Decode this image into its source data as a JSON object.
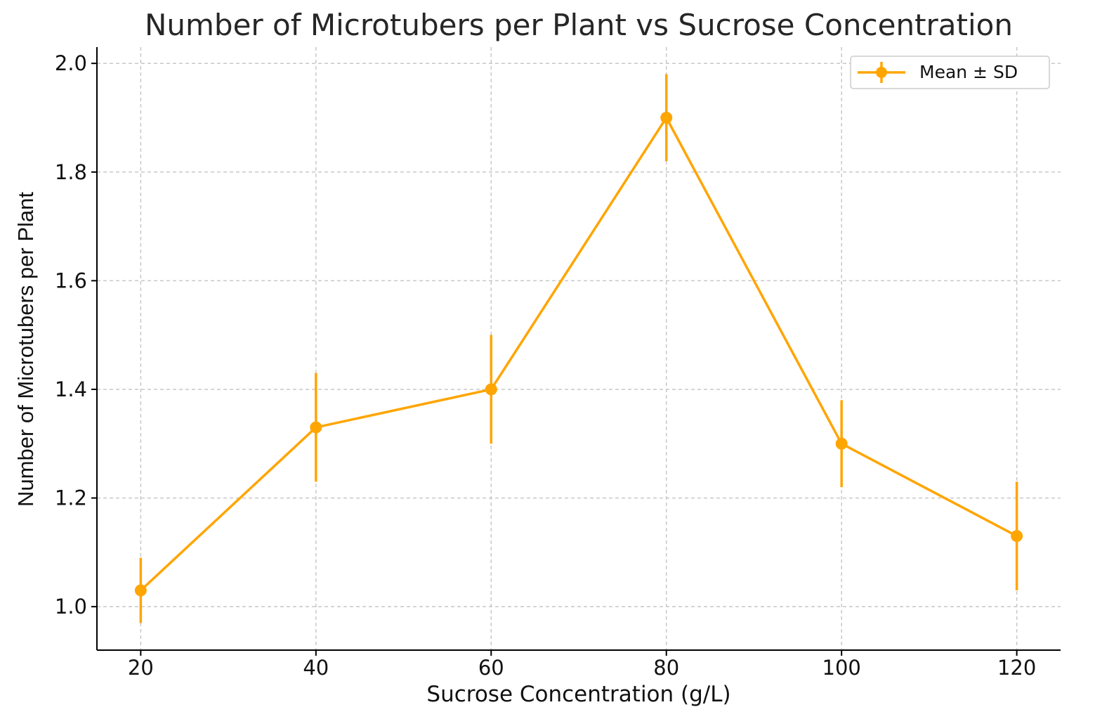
{
  "chart_data": {
    "type": "line",
    "title": "Number of Microtubers per Plant vs Sucrose Concentration",
    "xlabel": "Sucrose Concentration (g/L)",
    "ylabel": "Number of Microtubers per Plant",
    "xlim": [
      15,
      125
    ],
    "ylim": [
      0.92,
      2.03
    ],
    "xticks": [
      20,
      40,
      60,
      80,
      100,
      120
    ],
    "yticks": [
      1.0,
      1.2,
      1.4,
      1.6,
      1.8,
      2.0
    ],
    "xtick_labels": [
      "20",
      "40",
      "60",
      "80",
      "100",
      "120"
    ],
    "ytick_labels": [
      "1.0",
      "1.2",
      "1.4",
      "1.6",
      "1.8",
      "2.0"
    ],
    "grid": true,
    "legend_position": "top-right",
    "color": "#ffa500",
    "series": [
      {
        "name": "Mean ± SD",
        "x": [
          20,
          40,
          60,
          80,
          100,
          120
        ],
        "y": [
          1.03,
          1.33,
          1.4,
          1.9,
          1.3,
          1.13
        ],
        "yerr": [
          0.06,
          0.1,
          0.1,
          0.08,
          0.08,
          0.1
        ]
      }
    ]
  }
}
